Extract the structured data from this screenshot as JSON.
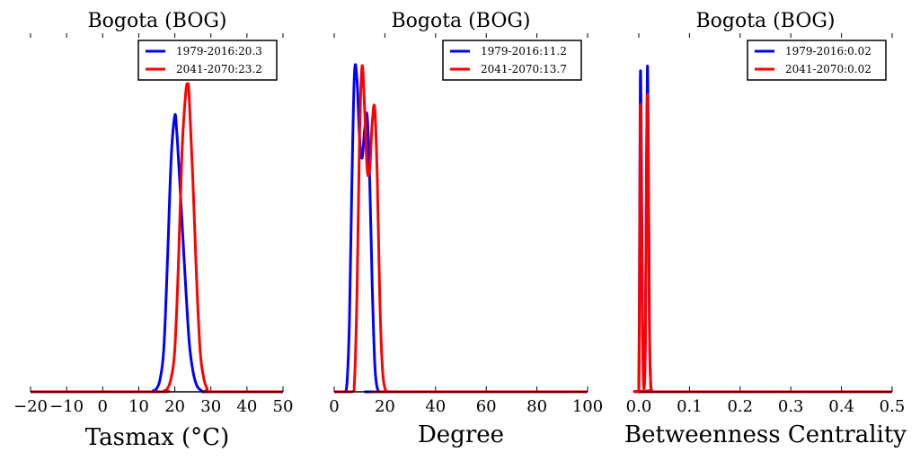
{
  "chart_data": [
    {
      "type": "line",
      "title": "Bogota (BOG)",
      "xlabel": "Tasmax ($^\\circ$C)",
      "xlabel_display": "Tasmax (°C)",
      "ylabel": "",
      "xlim": [
        -20,
        50
      ],
      "ylim": [
        0,
        1
      ],
      "xticks": [
        -20,
        -10,
        0,
        10,
        20,
        30,
        40,
        50
      ],
      "xtick_labels": [
        "−20",
        "−10",
        "0",
        "10",
        "20",
        "30",
        "40",
        "50"
      ],
      "grid": false,
      "legend_position": "top-right",
      "series": [
        {
          "name": "1979-2016:20.3",
          "color": "#0000ff",
          "x": [
            -20,
            12,
            14,
            15,
            16,
            17,
            18,
            19,
            20,
            20.5,
            21,
            22,
            23,
            24,
            25,
            26,
            27,
            28,
            30,
            50
          ],
          "y": [
            0,
            0,
            0.003,
            0.01,
            0.04,
            0.13,
            0.38,
            0.66,
            0.78,
            0.74,
            0.66,
            0.48,
            0.3,
            0.14,
            0.06,
            0.02,
            0.006,
            0,
            0,
            0
          ]
        },
        {
          "name": "2041-2070:23.2",
          "color": "#ff0000",
          "x": [
            -20,
            15,
            17,
            18,
            19,
            20,
            21,
            22,
            23,
            23.6,
            24,
            25,
            26,
            27,
            28,
            29,
            30,
            50
          ],
          "y": [
            0,
            0,
            0.003,
            0.01,
            0.04,
            0.12,
            0.36,
            0.68,
            0.84,
            0.87,
            0.83,
            0.6,
            0.33,
            0.12,
            0.04,
            0.008,
            0,
            0
          ]
        }
      ]
    },
    {
      "type": "line",
      "title": "Bogota (BOG)",
      "xlabel": "Degree",
      "ylabel": "",
      "xlim": [
        0,
        100
      ],
      "ylim": [
        0,
        1
      ],
      "xticks": [
        0,
        20,
        40,
        60,
        80,
        100
      ],
      "xtick_labels": [
        "0",
        "20",
        "40",
        "60",
        "80",
        "100"
      ],
      "grid": false,
      "legend_position": "top-right",
      "series": [
        {
          "name": "1979-2016:11.2",
          "color": "#0000ff",
          "x": [
            0,
            4,
            5,
            6,
            7,
            8,
            9,
            10,
            11,
            12,
            13,
            14,
            15,
            16,
            17,
            18,
            19,
            100
          ],
          "y": [
            0,
            0,
            0.02,
            0.2,
            0.6,
            0.9,
            0.88,
            0.72,
            0.66,
            0.74,
            0.78,
            0.6,
            0.3,
            0.08,
            0.01,
            0,
            0,
            0
          ]
        },
        {
          "name": "2041-2070:13.7",
          "color": "#ff0000",
          "x": [
            0,
            7,
            8,
            9,
            10,
            11,
            12,
            13,
            14,
            15,
            16,
            17,
            18,
            19,
            20,
            21,
            22,
            100
          ],
          "y": [
            0,
            0,
            0.03,
            0.28,
            0.72,
            0.92,
            0.8,
            0.63,
            0.63,
            0.76,
            0.8,
            0.6,
            0.26,
            0.07,
            0.01,
            0,
            0,
            0
          ]
        }
      ]
    },
    {
      "type": "line",
      "title": "Bogota (BOG)",
      "xlabel": "Betweenness Centrality",
      "ylabel": "",
      "xlim": [
        0,
        0.5
      ],
      "ylim": [
        0,
        1
      ],
      "xticks": [
        0.0,
        0.1,
        0.2,
        0.3,
        0.4,
        0.5
      ],
      "xtick_labels": [
        "0.0",
        "0.1",
        "0.2",
        "0.3",
        "0.4",
        "0.5"
      ],
      "grid": false,
      "legend_position": "top-right",
      "series": [
        {
          "name": "1979-2016:0.02",
          "color": "#0000ff",
          "x": [
            0,
            0.001,
            0.003,
            0.005,
            0.007,
            0.009,
            0.011,
            0.013,
            0.015,
            0.017,
            0.019,
            0.021,
            0.023,
            0.025,
            0.03,
            0.5
          ],
          "y": [
            0,
            0.2,
            0.88,
            0.7,
            0.25,
            0.05,
            0.02,
            0.15,
            0.6,
            0.92,
            0.65,
            0.2,
            0.04,
            0.005,
            0,
            0
          ]
        },
        {
          "name": "2041-2070:0.02",
          "color": "#ff0000",
          "x": [
            0,
            0.001,
            0.003,
            0.005,
            0.007,
            0.009,
            0.011,
            0.013,
            0.015,
            0.017,
            0.019,
            0.021,
            0.023,
            0.025,
            0.03,
            0.5
          ],
          "y": [
            0,
            0.15,
            0.79,
            0.6,
            0.22,
            0.04,
            0.02,
            0.14,
            0.56,
            0.84,
            0.6,
            0.18,
            0.04,
            0.005,
            0,
            0
          ]
        }
      ]
    }
  ]
}
